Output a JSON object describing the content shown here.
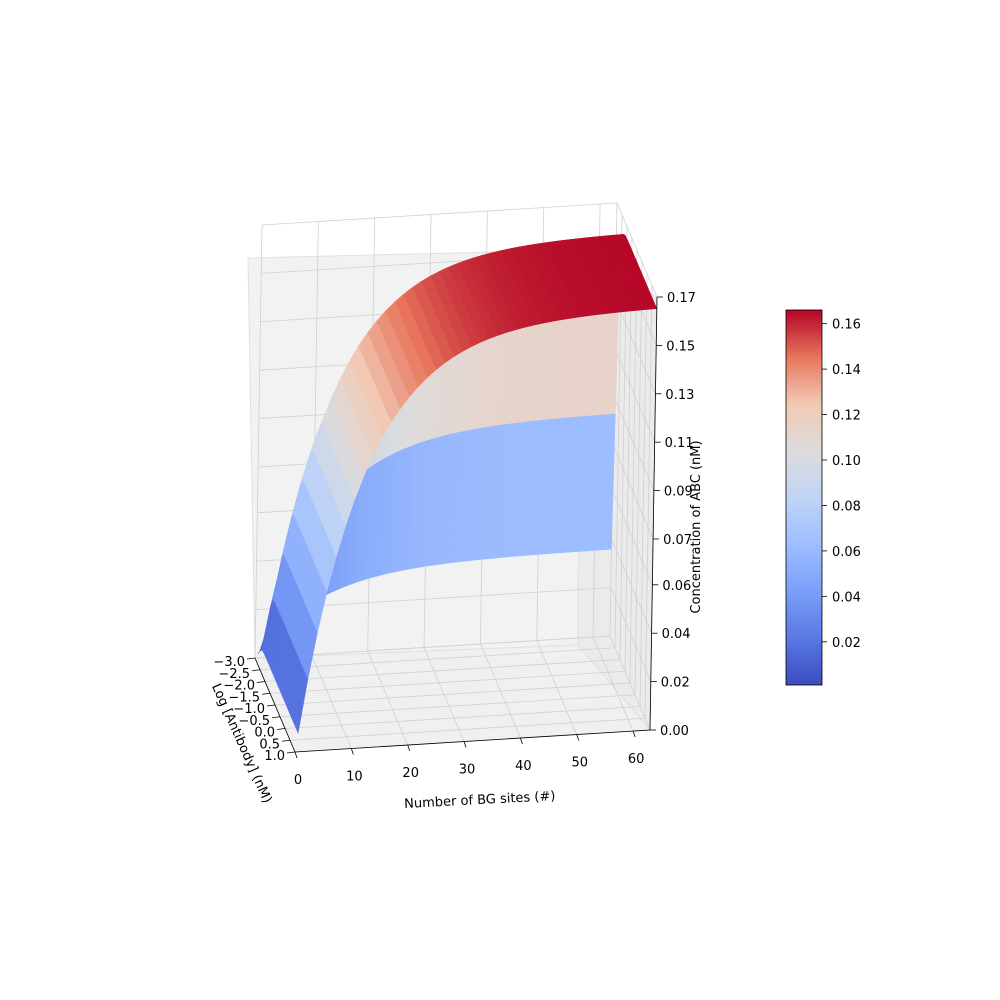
{
  "chart_data": {
    "type": "surface3d",
    "title": "",
    "xlabel": "Number of BG sites (#)",
    "ylabel": "Log [Antibody] (nM)",
    "zlabel": "Concentration of ABC (nM)",
    "x_ticks": [
      "0",
      "10",
      "20",
      "30",
      "40",
      "50",
      "60"
    ],
    "y_ticks": [
      "−3.0",
      "−2.5",
      "−2.0",
      "−1.5",
      "−1.0",
      "−0.5",
      "0.0",
      "0.5",
      "1.0"
    ],
    "z_ticks": [
      "0.00",
      "0.02",
      "0.04",
      "0.06",
      "0.07",
      "0.09",
      "0.11",
      "0.13",
      "0.15",
      "0.17"
    ],
    "xlim": [
      0,
      63
    ],
    "ylim": [
      -3.0,
      1.0
    ],
    "zlim": [
      0,
      0.17
    ],
    "colormap": "coolwarm",
    "grid": true,
    "surface": {
      "description_function": "ABC = 0.168 * (1 - exp(-k * sites)) saturating; steep rise near 0 sites",
      "max_value": 0.166,
      "min_value": 0.0,
      "x_samples": [
        1,
        2,
        3,
        4,
        5,
        6,
        8,
        10,
        12,
        14,
        17,
        20,
        24,
        28,
        33,
        38,
        44,
        50,
        56,
        60
      ],
      "z_at_max_antibody": [
        0.002,
        0.018,
        0.034,
        0.048,
        0.06,
        0.071,
        0.088,
        0.101,
        0.112,
        0.121,
        0.131,
        0.138,
        0.146,
        0.151,
        0.156,
        0.159,
        0.162,
        0.164,
        0.165,
        0.166
      ]
    },
    "colorbar": {
      "ticks": [
        "0.02",
        "0.04",
        "0.06",
        "0.08",
        "0.10",
        "0.12",
        "0.14",
        "0.16"
      ],
      "range": [
        0.001,
        0.166
      ]
    }
  }
}
